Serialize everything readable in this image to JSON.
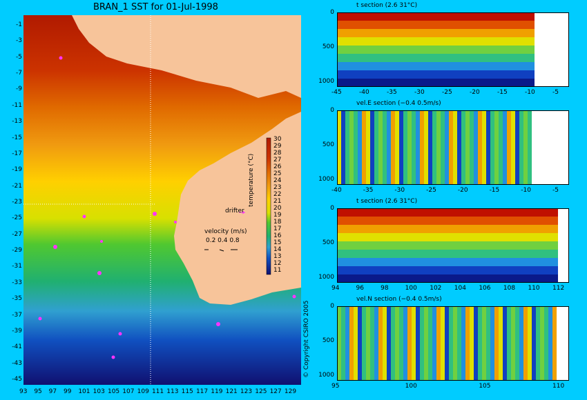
{
  "map": {
    "title": "BRAN_1 SST for 01-Jul-1998",
    "y_ticks": [
      "-1",
      "-3",
      "-5",
      "-7",
      "-9",
      "-11",
      "-13",
      "-15",
      "-17",
      "-19",
      "-21",
      "-23",
      "-25",
      "-27",
      "-29",
      "-31",
      "-33",
      "-35",
      "-37",
      "-39",
      "-41",
      "-43",
      "-45"
    ],
    "x_ticks": [
      "93",
      "95",
      "97",
      "99",
      "101",
      "103",
      "105",
      "107",
      "109",
      "111",
      "113",
      "115",
      "117",
      "119",
      "121",
      "123",
      "125",
      "127",
      "129"
    ],
    "colorbar_ticks": [
      "30",
      "29",
      "28",
      "27",
      "26",
      "25",
      "24",
      "23",
      "22",
      "21",
      "20",
      "19",
      "18",
      "17",
      "16",
      "15",
      "14",
      "13",
      "12",
      "11"
    ],
    "colorbar_label": "temperature (°C)",
    "drifter_label": "drifter",
    "velocity_label": "velocity (m/s)",
    "velocity_scale": "0.2 0.4 0.8",
    "copyright": "© Copyright CSIRO 2005"
  },
  "panels": [
    {
      "title": "t section (2.6       31°C)",
      "y_ticks": [
        "0",
        "500",
        "1000"
      ],
      "x_ticks": [
        "-45",
        "-40",
        "-35",
        "-30",
        "-25",
        "-20",
        "-15",
        "-10",
        "-5"
      ]
    },
    {
      "title": "vel.E section (−0.4       0.5m/s)",
      "y_ticks": [
        "0",
        "500",
        "1000"
      ],
      "x_ticks": [
        "-40",
        "-35",
        "-30",
        "-25",
        "-20",
        "-15",
        "-10",
        "-5"
      ]
    },
    {
      "title": "t section (2.6       31°C)",
      "y_ticks": [
        "0",
        "500",
        "1000"
      ],
      "x_ticks": [
        "94",
        "96",
        "98",
        "100",
        "102",
        "104",
        "106",
        "108",
        "110",
        "112"
      ]
    },
    {
      "title": "vel.N section (−0.4       0.5m/s)",
      "y_ticks": [
        "0",
        "500",
        "1000"
      ],
      "x_ticks": [
        "95",
        "100",
        "105",
        "110"
      ]
    }
  ]
}
